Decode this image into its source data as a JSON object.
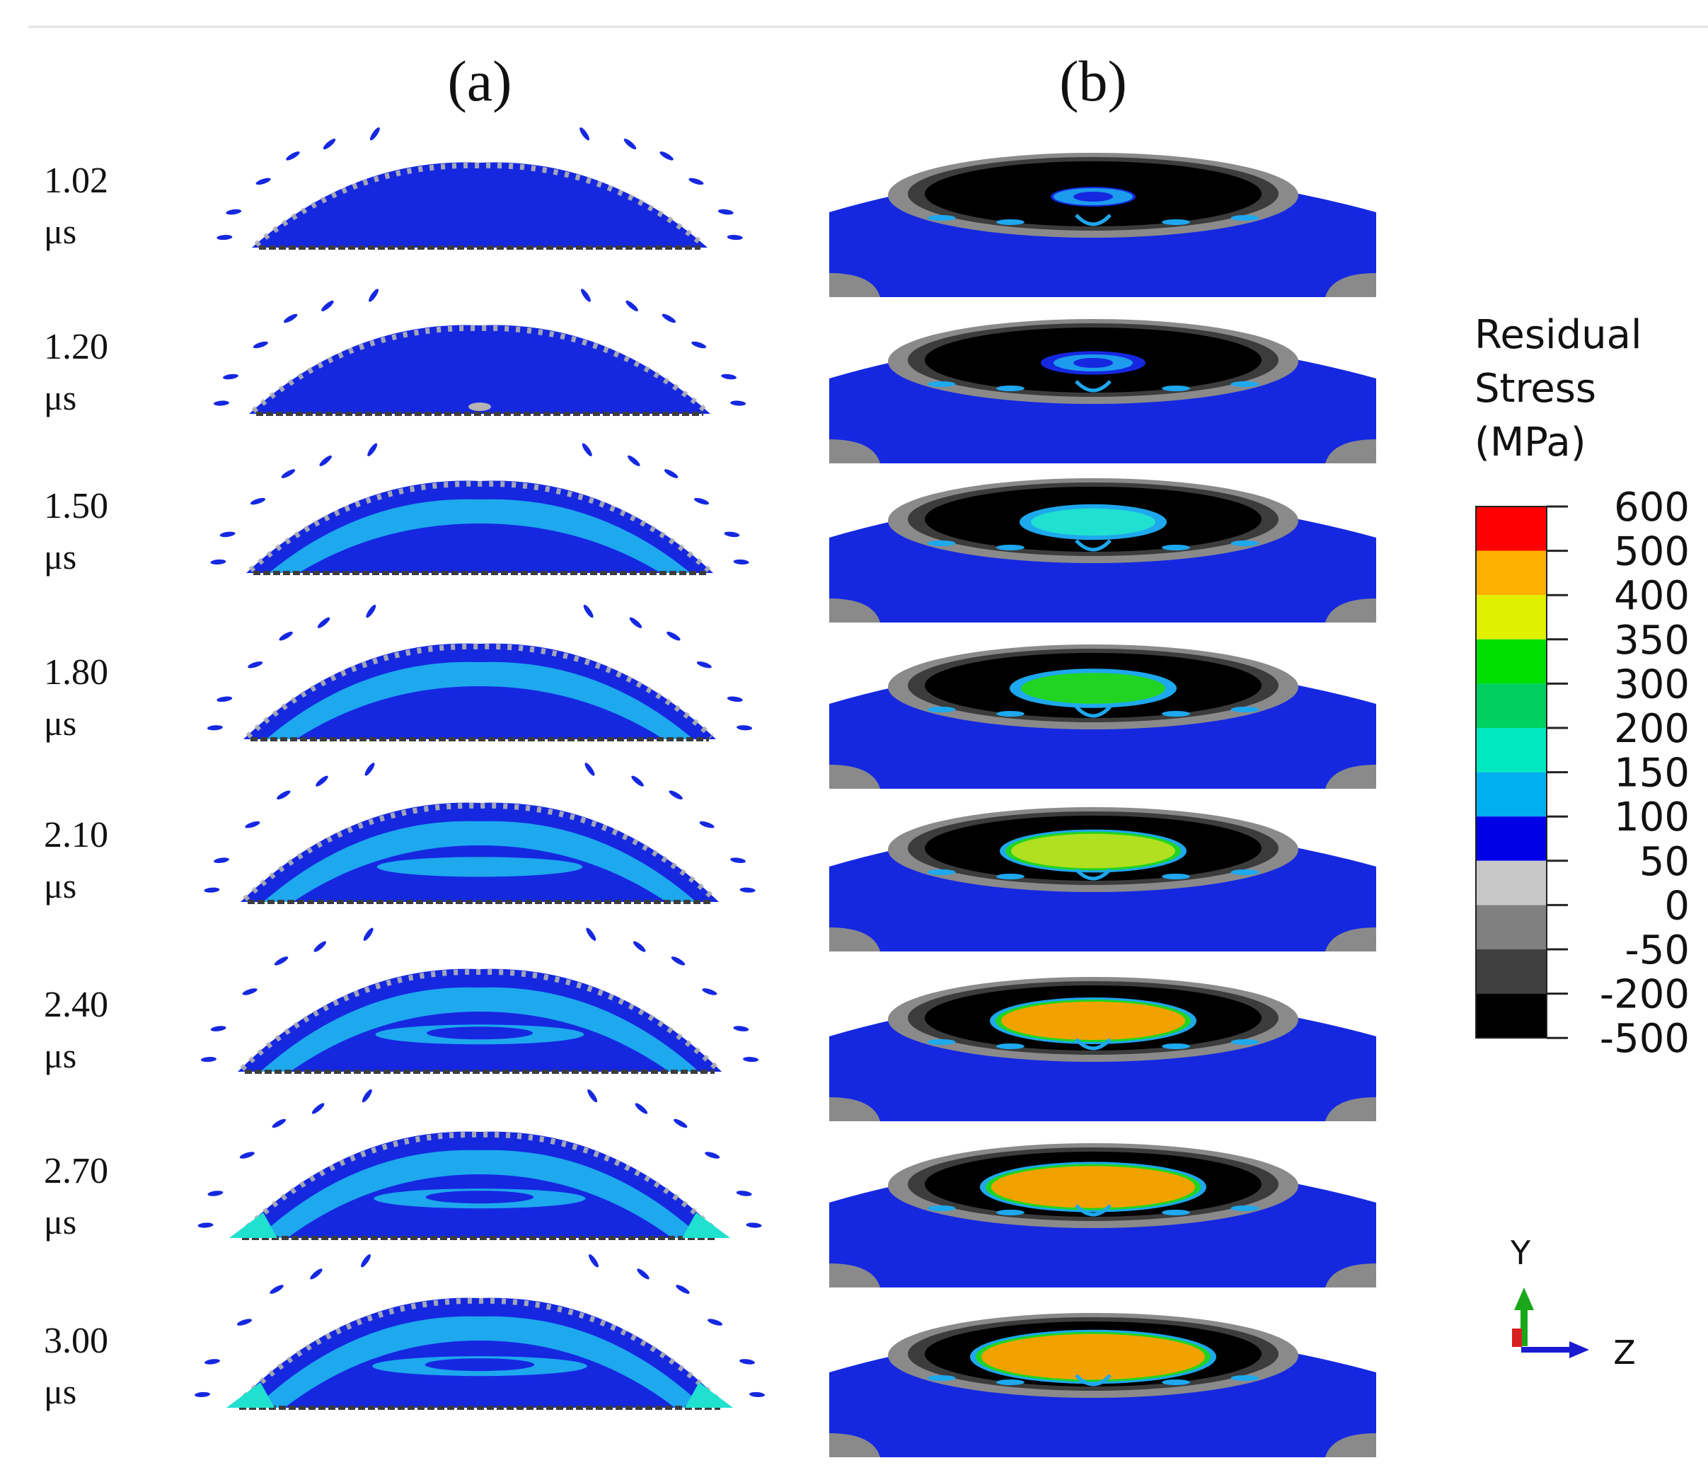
{
  "panels": {
    "a_label": "(a)",
    "b_label": "(b)"
  },
  "time_unit": "μs",
  "frames": [
    {
      "time": "1.02",
      "stage": 0
    },
    {
      "time": "1.20",
      "stage": 1
    },
    {
      "time": "1.50",
      "stage": 2
    },
    {
      "time": "1.80",
      "stage": 3
    },
    {
      "time": "2.10",
      "stage": 4
    },
    {
      "time": "2.40",
      "stage": 5
    },
    {
      "time": "2.70",
      "stage": 6
    },
    {
      "time": "3.00",
      "stage": 7
    }
  ],
  "legend": {
    "title_lines": [
      "Residual",
      "Stress",
      "(MPa)"
    ],
    "ticks": [
      "600",
      "500",
      "400",
      "350",
      "300",
      "200",
      "150",
      "100",
      "50",
      "0",
      "-50",
      "-200",
      "-500"
    ],
    "colors": [
      "#ff0000",
      "#ffb000",
      "#e0f000",
      "#00e000",
      "#00d060",
      "#00e8c0",
      "#00b0f0",
      "#0000e8",
      "#c8c8c8",
      "#808080",
      "#404040",
      "#000000"
    ]
  },
  "axes_triad": {
    "y_label": "Y",
    "z_label": "Z"
  },
  "colors": {
    "deep_blue": "#1528e0",
    "light_blue": "#1ea8ee",
    "grey_light": "#b4b4b4",
    "grey_mid": "#8a8a8a",
    "grey_dark": "#3c3c3c",
    "black": "#000000",
    "green": "#22d422",
    "yellow_green": "#b0e020",
    "orange": "#f2a200",
    "cyan": "#20e0d0"
  }
}
